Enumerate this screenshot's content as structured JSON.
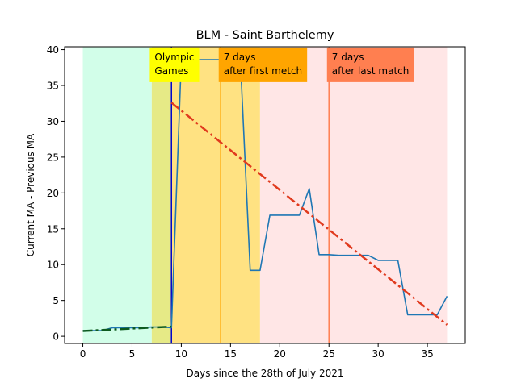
{
  "chart_data": {
    "type": "line",
    "title": "BLM - Saint Barthelemy",
    "xlabel": "Days since the 28th of July 2021",
    "ylabel": "Current MA - Previous MA",
    "xlim": [
      -1.85,
      38.85
    ],
    "ylim": [
      -1.0,
      40.4
    ],
    "xticks": [
      0,
      5,
      10,
      15,
      20,
      25,
      30,
      35
    ],
    "yticks": [
      0,
      5,
      10,
      15,
      20,
      25,
      30,
      35,
      40
    ],
    "grid": false,
    "shaded_regions": [
      {
        "x0": 0,
        "x1": 7,
        "color": "#d2fee9"
      },
      {
        "x0": 7,
        "x1": 9,
        "color": "#e6ea86"
      },
      {
        "x0": 9,
        "x1": 18,
        "color": "#ffe282"
      },
      {
        "x0": 18,
        "x1": 37,
        "color": "#ffe6e6"
      }
    ],
    "vertical_lines": [
      {
        "x": 9,
        "color": "#0000cc"
      },
      {
        "x": 14,
        "color": "#ffa500"
      },
      {
        "x": 25,
        "color": "#ff7f50"
      }
    ],
    "annotations": [
      {
        "lines": [
          "Olympic",
          "Games"
        ],
        "x": 6.8,
        "y_top": 40.3,
        "bg": "#ffff00"
      },
      {
        "lines": [
          "7 days",
          "after first metch"
        ],
        "x": 13.8,
        "y_top": 40.3,
        "bg": "#ffa500"
      },
      {
        "lines": [
          "7 days",
          "after last match"
        ],
        "x": 24.8,
        "y_top": 40.3,
        "bg": "#ff7f50"
      }
    ],
    "series": [
      {
        "style": "solid",
        "color": "#1f77b4",
        "x": [
          0,
          1,
          2,
          3,
          4,
          5,
          6,
          7,
          8,
          9,
          10,
          11,
          12,
          13,
          14,
          15,
          16,
          17,
          18,
          19,
          20,
          21,
          22,
          23,
          24,
          25,
          26,
          27,
          28,
          29,
          30,
          31,
          32,
          33,
          34,
          35,
          36,
          37
        ],
        "values": [
          0.8,
          0.8,
          0.8,
          1.2,
          1.2,
          1.2,
          1.2,
          1.3,
          1.3,
          1.2,
          38.6,
          38.6,
          38.6,
          38.6,
          38.6,
          38.6,
          38.6,
          9.2,
          9.2,
          16.9,
          16.9,
          16.9,
          16.9,
          20.6,
          11.4,
          11.4,
          11.3,
          11.3,
          11.3,
          11.3,
          10.6,
          10.6,
          10.6,
          3.0,
          3.0,
          3.0,
          3.0,
          5.6
        ]
      },
      {
        "style": "dashdot",
        "color": "#0d5a1f",
        "x": [
          0,
          9
        ],
        "values": [
          0.75,
          1.35
        ]
      },
      {
        "style": "dashdot",
        "color": "#e03a1e",
        "x": [
          9,
          37
        ],
        "values": [
          32.6,
          1.6
        ]
      }
    ]
  }
}
